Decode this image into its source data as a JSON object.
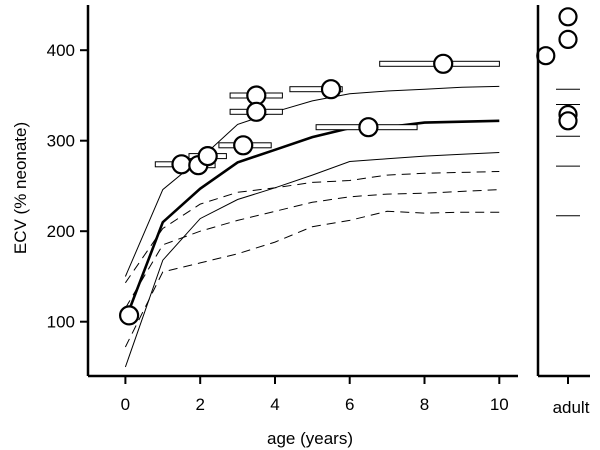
{
  "chart_data": {
    "type": "line",
    "xlabel": "age (years)",
    "ylabel": "ECV (% neonate)",
    "xlim": [
      -1,
      10.5
    ],
    "ylim": [
      40,
      450
    ],
    "x_ticks": [
      0,
      2,
      4,
      6,
      8,
      10
    ],
    "x_tick_labels": [
      "0",
      "2",
      "4",
      "6",
      "8",
      "10"
    ],
    "y_ticks": [
      100,
      200,
      300,
      400
    ],
    "y_tick_labels": [
      "100",
      "200",
      "300",
      "400"
    ],
    "adult_label": "adult",
    "grid": false,
    "legend": "none",
    "series": [
      {
        "style": "thick-solid",
        "x": [
          0,
          1,
          2,
          3,
          4,
          5,
          6,
          7,
          8,
          9,
          10
        ],
        "y": [
          102,
          210,
          247,
          276,
          290,
          304,
          314,
          315,
          320,
          321,
          322
        ]
      },
      {
        "style": "thin-solid",
        "x": [
          0,
          1,
          2,
          3,
          4,
          5,
          6,
          7,
          8,
          9,
          10
        ],
        "y": [
          150,
          246,
          280,
          318,
          332,
          344,
          352,
          355,
          357,
          359,
          360
        ]
      },
      {
        "style": "thin-solid",
        "x": [
          0,
          1,
          2,
          3,
          4,
          5,
          6,
          7,
          8,
          9,
          10
        ],
        "y": [
          50,
          168,
          214,
          235,
          248,
          262,
          277,
          280,
          283,
          285,
          287
        ]
      },
      {
        "style": "dashed",
        "x": [
          0,
          1,
          2,
          3,
          4,
          5,
          6,
          7,
          8,
          9,
          10
        ],
        "y": [
          143,
          203,
          230,
          243,
          248,
          254,
          256,
          262,
          264,
          265,
          266
        ]
      },
      {
        "style": "dashed",
        "x": [
          0,
          1,
          2,
          3,
          4,
          5,
          6,
          7,
          8,
          9,
          10
        ],
        "y": [
          115,
          185,
          200,
          212,
          222,
          232,
          238,
          241,
          242,
          244,
          246
        ]
      },
      {
        "style": "dashed",
        "x": [
          0,
          1,
          2,
          3,
          4,
          5,
          6,
          7,
          8,
          9,
          10
        ],
        "y": [
          72,
          155,
          165,
          175,
          188,
          205,
          212,
          222,
          220,
          221,
          221
        ]
      }
    ],
    "points": [
      {
        "x": 0.1,
        "y": 107,
        "xerr": [
          0.05,
          0.15
        ]
      },
      {
        "x": 1.5,
        "y": 274,
        "xerr": [
          0.8,
          2.1
        ]
      },
      {
        "x": 1.95,
        "y": 273,
        "xerr": [
          1.6,
          2.4
        ]
      },
      {
        "x": 2.2,
        "y": 283,
        "xerr": [
          1.7,
          2.7
        ]
      },
      {
        "x": 3.15,
        "y": 295,
        "xerr": [
          2.5,
          3.9
        ]
      },
      {
        "x": 3.5,
        "y": 350,
        "xerr": [
          2.8,
          4.2
        ]
      },
      {
        "x": 3.5,
        "y": 332,
        "xerr": [
          2.8,
          4.2
        ]
      },
      {
        "x": 5.5,
        "y": 357,
        "xerr": [
          4.4,
          5.8
        ]
      },
      {
        "x": 6.5,
        "y": 315,
        "xerr": [
          5.1,
          7.8
        ]
      },
      {
        "x": 8.5,
        "y": 385,
        "xerr": [
          6.8,
          10.0
        ]
      }
    ],
    "adult_points": [
      {
        "offset": -0.6,
        "y": 394
      },
      {
        "offset": 0,
        "y": 437
      },
      {
        "offset": 0,
        "y": 412
      },
      {
        "offset": 0,
        "y": 329
      },
      {
        "offset": 0,
        "y": 322
      }
    ],
    "adult_ref_lines": [
      357,
      340,
      305,
      272,
      217
    ]
  }
}
